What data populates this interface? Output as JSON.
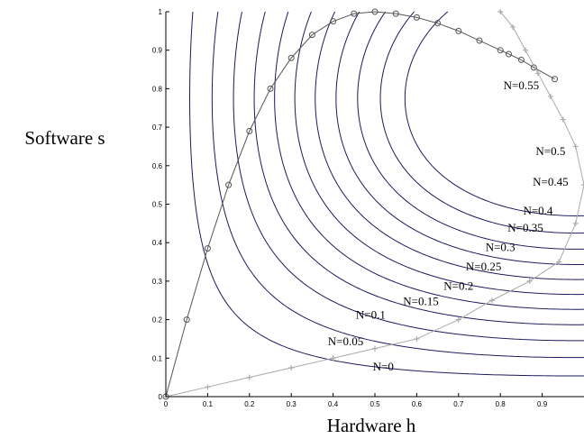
{
  "chart_data": {
    "type": "line",
    "title": "",
    "xlabel": "Hardware h",
    "ylabel": "Software s",
    "xlim": [
      0,
      1
    ],
    "ylim": [
      0,
      1
    ],
    "grid": false,
    "x_ticks": [
      "0",
      "0.1",
      "0.2",
      "0.3",
      "0.4",
      "0.5",
      "0.6",
      "0.7",
      "0.8",
      "0.9"
    ],
    "y_ticks": [
      "0",
      "0.1",
      "0.2",
      "0.3",
      "0.4",
      "0.5",
      "0.6",
      "0.7",
      "0.8",
      "0.9",
      "1"
    ],
    "colors": {
      "contours": "#1a1a5e",
      "circle_series": "#555555",
      "plus_series": "#aaaaaa"
    },
    "contours": [
      {
        "label": "N=0",
        "label_at": [
          0.52,
          0.075
        ]
      },
      {
        "label": "N=0.05",
        "label_at": [
          0.43,
          0.14
        ]
      },
      {
        "label": "N=0.1",
        "label_at": [
          0.49,
          0.21
        ]
      },
      {
        "label": "N=0.15",
        "label_at": [
          0.61,
          0.245
        ]
      },
      {
        "label": "N=0.2",
        "label_at": [
          0.7,
          0.285
        ]
      },
      {
        "label": "N=0.25",
        "label_at": [
          0.76,
          0.335
        ]
      },
      {
        "label": "N=0.3",
        "label_at": [
          0.8,
          0.385
        ]
      },
      {
        "label": "N=0.35",
        "label_at": [
          0.86,
          0.435
        ]
      },
      {
        "label": "N=0.4",
        "label_at": [
          0.89,
          0.48
        ]
      },
      {
        "label": "N=0.45",
        "label_at": [
          0.92,
          0.555
        ]
      },
      {
        "label": "N=0.5",
        "label_at": [
          0.92,
          0.635
        ]
      },
      {
        "label": "N=0.55",
        "label_at": [
          0.85,
          0.805
        ]
      }
    ],
    "series": [
      {
        "marker": "circle",
        "x": [
          0,
          0.05,
          0.1,
          0.15,
          0.2,
          0.25,
          0.3,
          0.35,
          0.4,
          0.45,
          0.5,
          0.55,
          0.6,
          0.65,
          0.7,
          0.75,
          0.8,
          0.82,
          0.85,
          0.88,
          0.93
        ],
        "y": [
          0,
          0.2,
          0.385,
          0.55,
          0.69,
          0.8,
          0.88,
          0.94,
          0.975,
          0.995,
          1.0,
          0.995,
          0.985,
          0.97,
          0.95,
          0.925,
          0.9,
          0.89,
          0.875,
          0.855,
          0.825
        ]
      },
      {
        "marker": "plus",
        "x": [
          0,
          0.1,
          0.2,
          0.3,
          0.4,
          0.5,
          0.6,
          0.7,
          0.78,
          0.87,
          0.94,
          0.98,
          1.0,
          0.98,
          0.95,
          0.92,
          0.89,
          0.86,
          0.83,
          0.8
        ],
        "y": [
          0,
          0.025,
          0.05,
          0.075,
          0.1,
          0.125,
          0.15,
          0.2,
          0.25,
          0.3,
          0.35,
          0.45,
          0.55,
          0.65,
          0.72,
          0.78,
          0.84,
          0.9,
          0.96,
          1.0
        ]
      }
    ]
  }
}
